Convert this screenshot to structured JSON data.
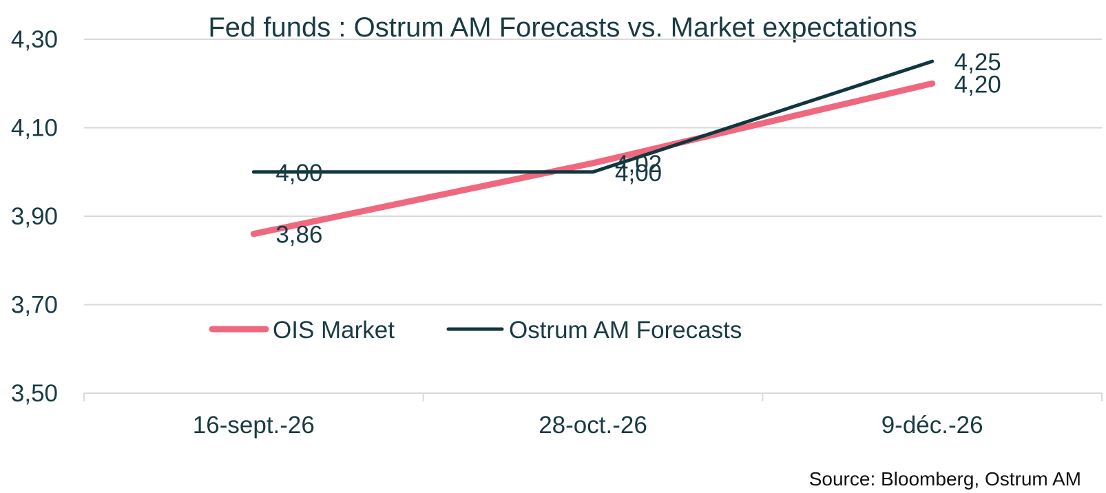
{
  "chart_data": {
    "type": "line",
    "title": "Fed funds : Ostrum AM Forecasts vs. Market expectations",
    "xlabel": "",
    "ylabel": "",
    "categories": [
      "16-sept.-26",
      "28-oct.-26",
      "9-déc.-26"
    ],
    "ylim": [
      3.5,
      4.3
    ],
    "yticks": [
      3.5,
      3.7,
      3.9,
      4.1,
      4.3
    ],
    "ytick_labels": [
      "3,50",
      "3,70",
      "3,90",
      "4,10",
      "4,30"
    ],
    "grid": true,
    "legend_position": "bottom-left",
    "series": [
      {
        "name": "OIS Market",
        "values": [
          3.86,
          4.02,
          4.2
        ],
        "labels": [
          "3,86",
          "4,02",
          "4,20"
        ],
        "color": "#f0687e"
      },
      {
        "name": "Ostrum AM Forecasts",
        "values": [
          4.0,
          4.0,
          4.25
        ],
        "labels": [
          "4,00",
          "4,00",
          "4,25"
        ],
        "color": "#11363d"
      }
    ],
    "source": "Source: Bloomberg, Ostrum AM"
  }
}
